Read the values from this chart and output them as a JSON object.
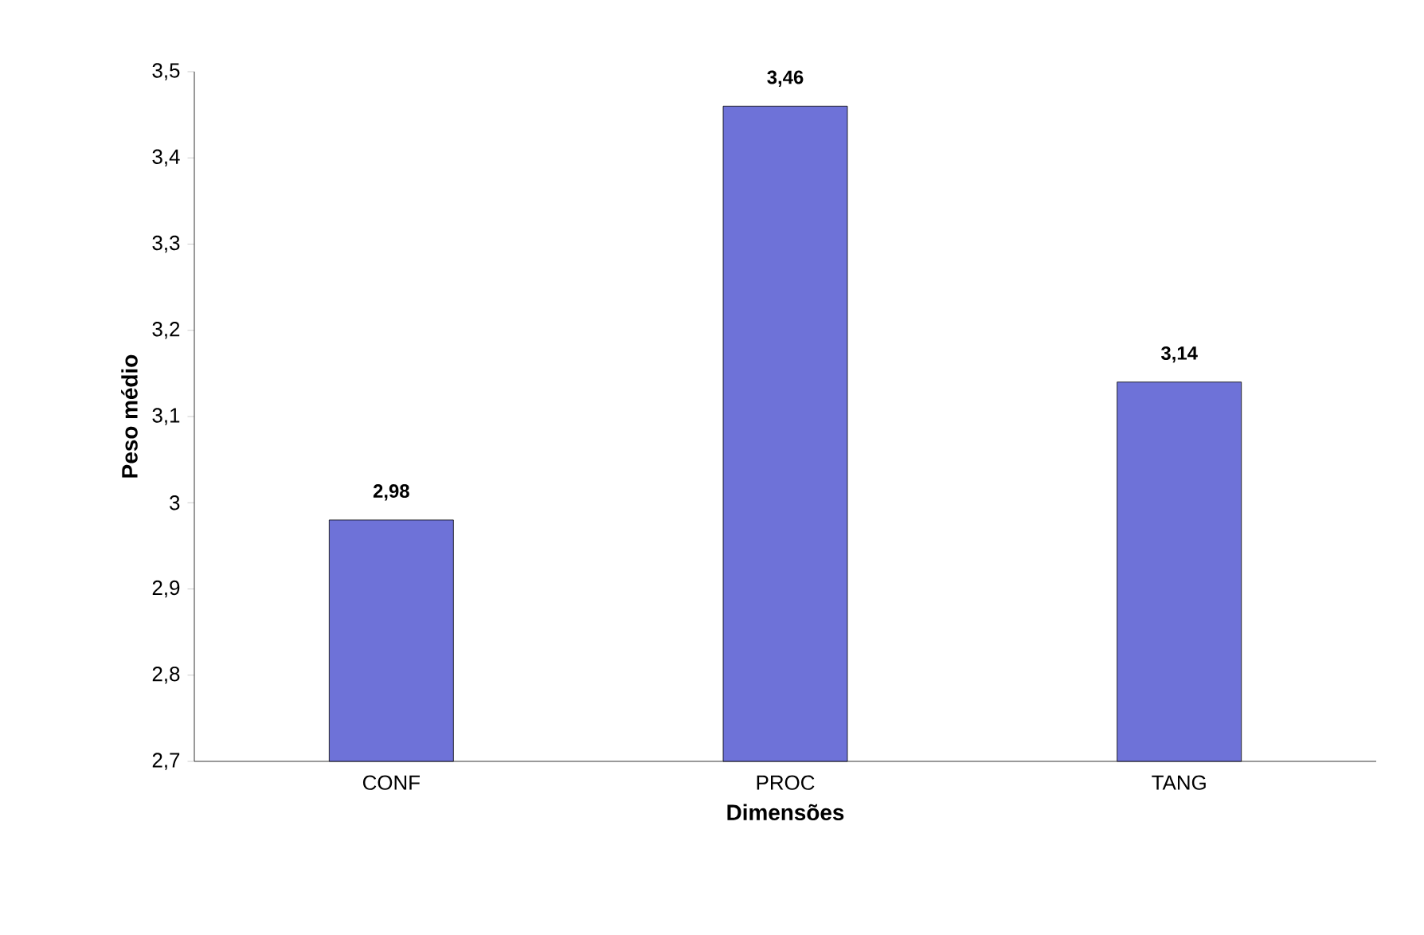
{
  "chart_data": {
    "type": "bar",
    "xlabel": "Dimensões",
    "ylabel": "Peso médio",
    "categories": [
      "CONF",
      "PROC",
      "TANG"
    ],
    "values": [
      2.98,
      3.46,
      3.14
    ],
    "value_labels": [
      "2,98",
      "3,46",
      "3,14"
    ],
    "color": "#6e72d8",
    "ylim": [
      2.7,
      3.5
    ],
    "yticks": [
      {
        "value": 2.7,
        "label": "2,7"
      },
      {
        "value": 2.8,
        "label": "2,8"
      },
      {
        "value": 2.9,
        "label": "2,9"
      },
      {
        "value": 3,
        "label": "3"
      },
      {
        "value": 3.1,
        "label": "3,1"
      },
      {
        "value": 3.2,
        "label": "3,2"
      },
      {
        "value": 3.3,
        "label": "3,3"
      },
      {
        "value": 3.4,
        "label": "3,4"
      },
      {
        "value": 3.5,
        "label": "3,5"
      }
    ],
    "grid": false
  }
}
